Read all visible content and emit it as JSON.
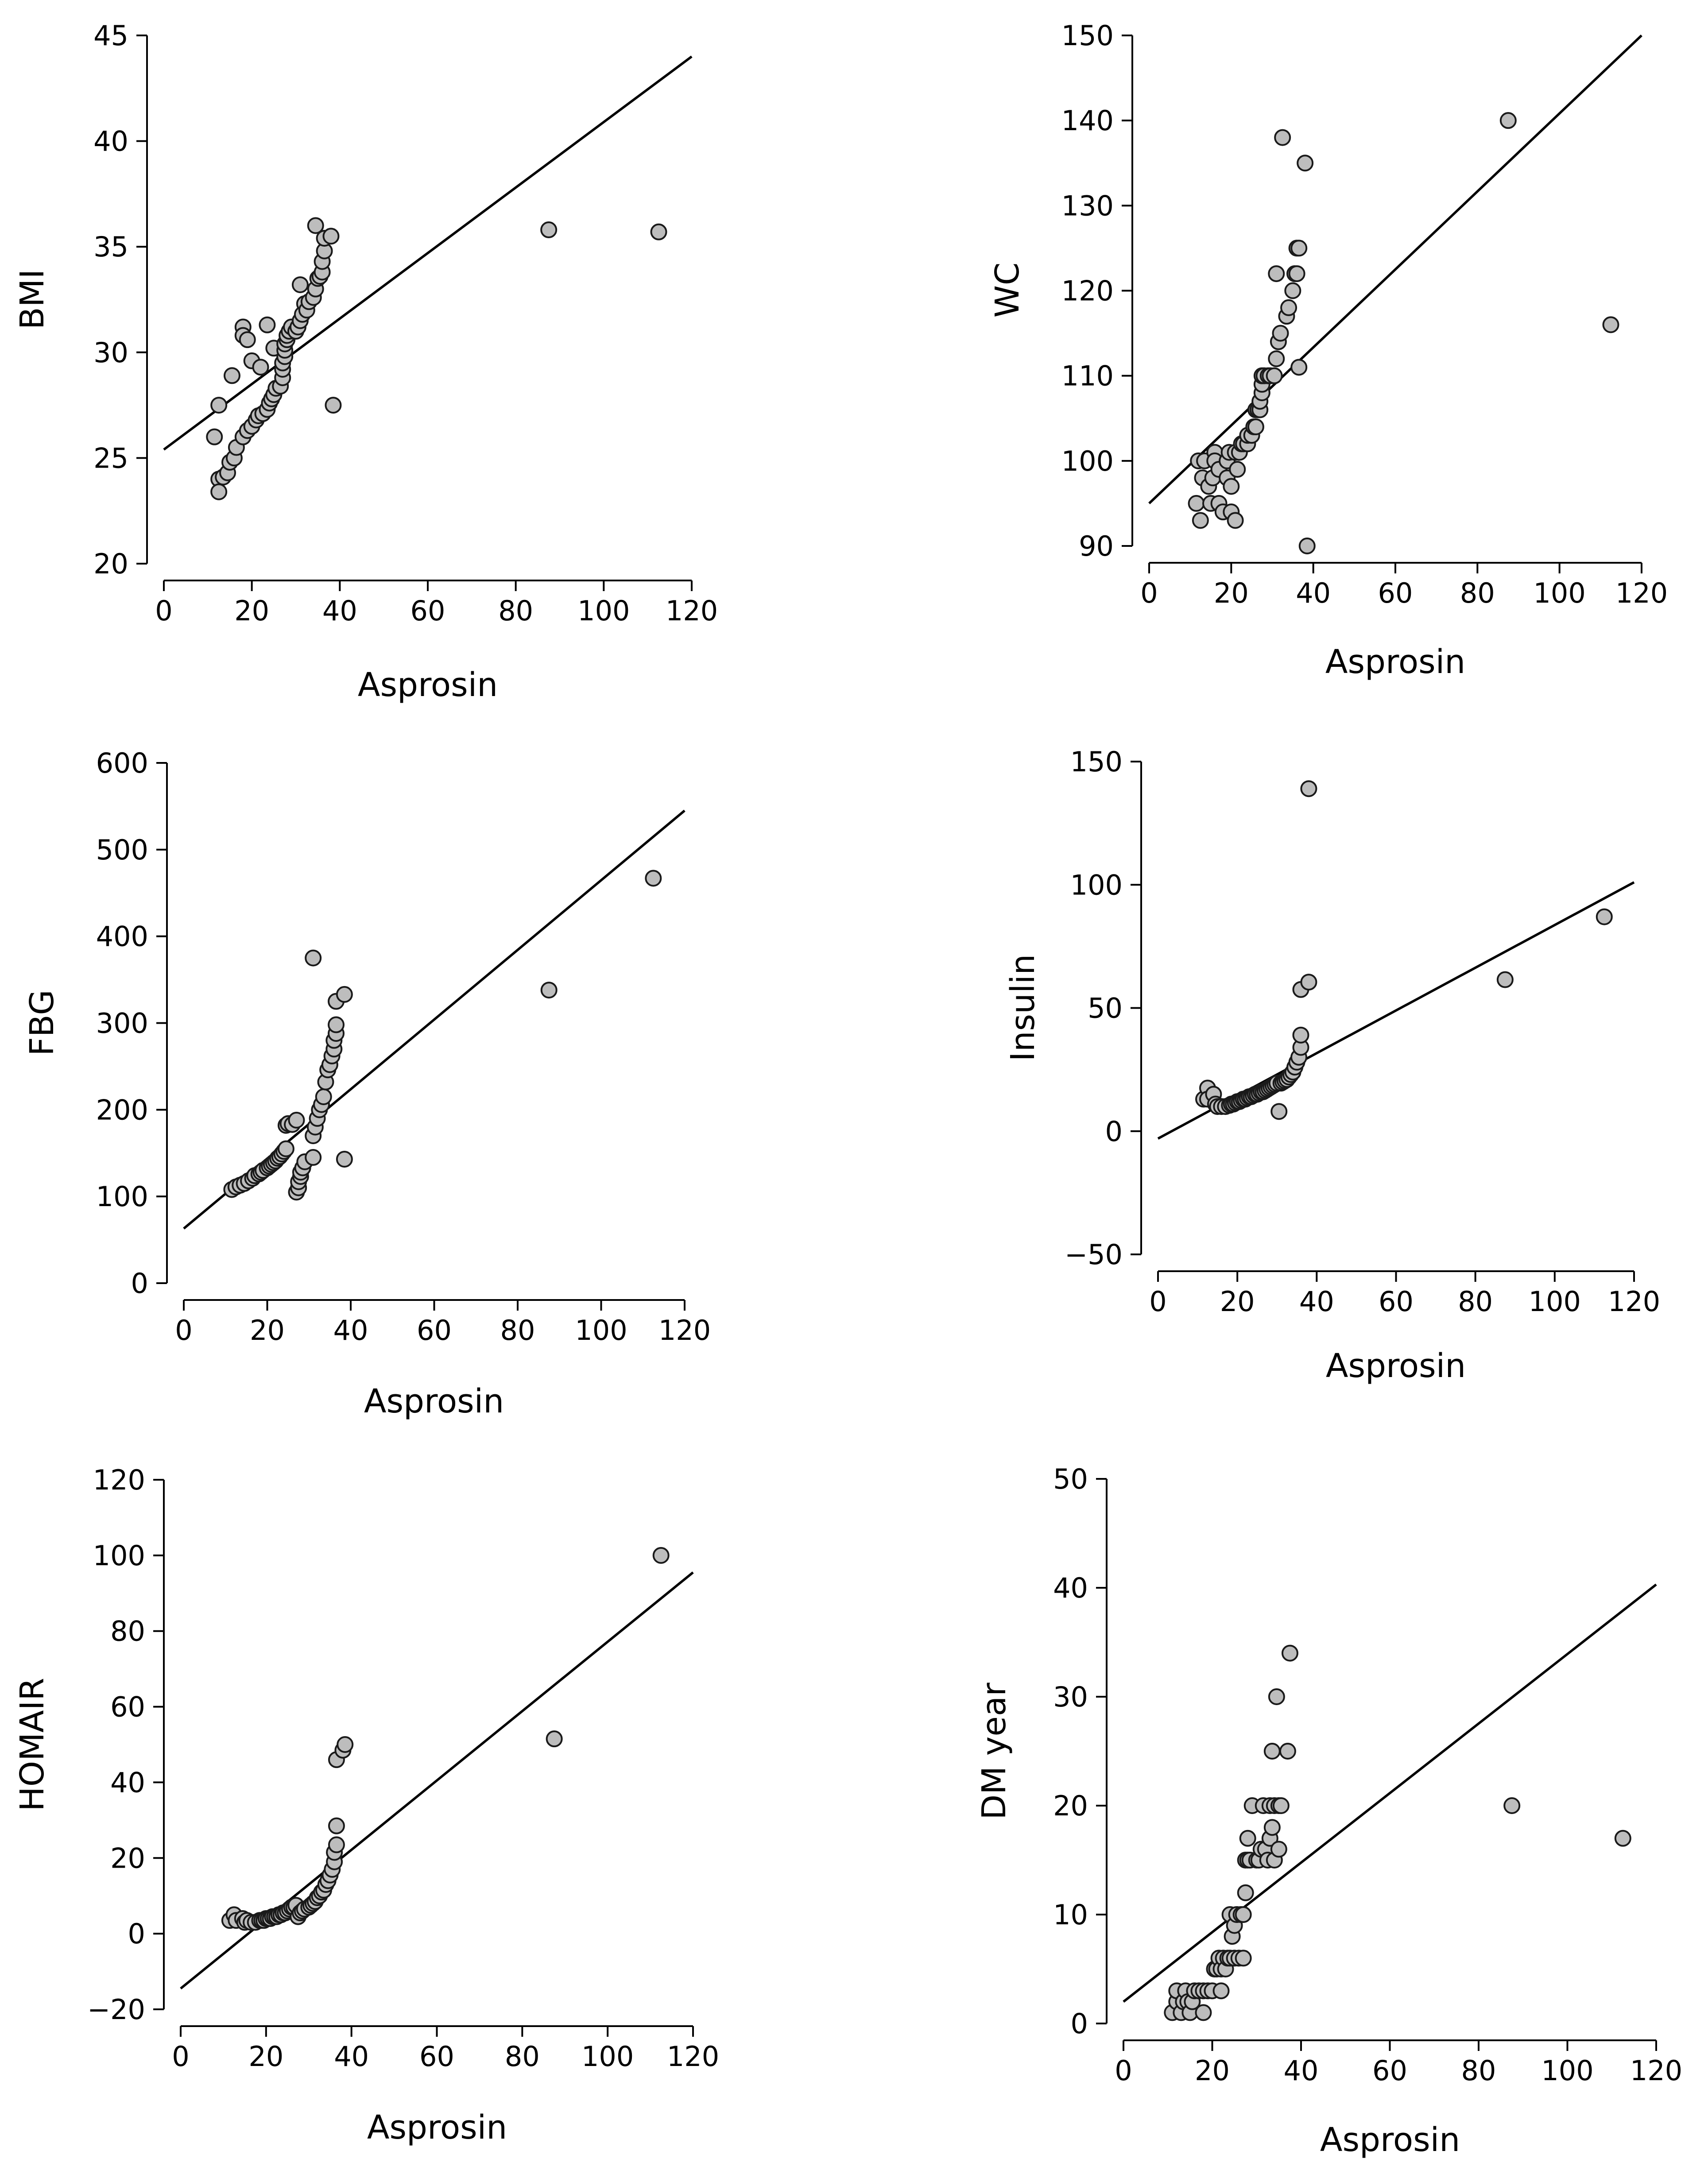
{
  "chart_data": [
    {
      "id": "bmi",
      "type": "scatter",
      "title": "",
      "xlabel": "Asprosin",
      "ylabel": "BMI",
      "xlim": [
        0,
        120
      ],
      "ylim": [
        20,
        45
      ],
      "xticks": [
        0,
        20,
        40,
        60,
        80,
        100,
        120
      ],
      "yticks": [
        20,
        25,
        30,
        35,
        40,
        45
      ],
      "fit_line": [
        [
          0,
          25.4
        ],
        [
          120,
          44
        ]
      ],
      "points": [
        [
          11.5,
          26
        ],
        [
          12.5,
          27.5
        ],
        [
          12.5,
          24
        ],
        [
          12.5,
          23.4
        ],
        [
          13.5,
          24.1
        ],
        [
          14.5,
          24.3
        ],
        [
          15,
          24.8
        ],
        [
          15.5,
          28.9
        ],
        [
          16,
          25
        ],
        [
          16.5,
          25.5
        ],
        [
          18,
          31.2
        ],
        [
          18,
          26
        ],
        [
          18,
          30.8
        ],
        [
          19,
          30.6
        ],
        [
          19,
          26.3
        ],
        [
          20,
          26.5
        ],
        [
          20,
          29.6
        ],
        [
          21,
          26.8
        ],
        [
          21.5,
          27
        ],
        [
          22,
          29.3
        ],
        [
          22.5,
          27.1
        ],
        [
          23.5,
          31.3
        ],
        [
          23.5,
          27.3
        ],
        [
          24,
          27.6
        ],
        [
          24.5,
          27.8
        ],
        [
          25,
          28
        ],
        [
          25,
          30.2
        ],
        [
          25.5,
          28.3
        ],
        [
          26.5,
          28.4
        ],
        [
          27,
          28.8
        ],
        [
          27,
          29.2
        ],
        [
          27,
          29.5
        ],
        [
          27.5,
          29.8
        ],
        [
          27.5,
          30.1
        ],
        [
          27.5,
          30.4
        ],
        [
          28,
          30.6
        ],
        [
          28,
          30.8
        ],
        [
          28.5,
          31
        ],
        [
          29,
          31.2
        ],
        [
          30,
          31
        ],
        [
          30.5,
          31.2
        ],
        [
          31,
          31.5
        ],
        [
          31,
          33.2
        ],
        [
          31.5,
          31.8
        ],
        [
          32,
          32.3
        ],
        [
          32.5,
          32
        ],
        [
          33,
          32.4
        ],
        [
          34,
          32.6
        ],
        [
          34.5,
          33
        ],
        [
          34.5,
          36
        ],
        [
          35,
          33.5
        ],
        [
          35.5,
          33.6
        ],
        [
          36,
          33.8
        ],
        [
          36,
          34.3
        ],
        [
          36.5,
          34.8
        ],
        [
          36.5,
          35.4
        ],
        [
          38,
          35.5
        ],
        [
          38.5,
          27.5
        ],
        [
          87.5,
          35.8
        ],
        [
          112.5,
          35.7
        ]
      ]
    },
    {
      "id": "wc",
      "type": "scatter",
      "title": "",
      "xlabel": "Asprosin",
      "ylabel": "WC",
      "xlim": [
        0,
        120
      ],
      "ylim": [
        90,
        150
      ],
      "xticks": [
        0,
        20,
        40,
        60,
        80,
        100,
        120
      ],
      "yticks": [
        90,
        100,
        110,
        120,
        130,
        140,
        150
      ],
      "fit_line": [
        [
          0,
          95
        ],
        [
          120,
          150
        ]
      ],
      "points": [
        [
          11.5,
          95
        ],
        [
          12,
          100
        ],
        [
          12.5,
          93
        ],
        [
          13,
          98
        ],
        [
          13.5,
          100
        ],
        [
          14.5,
          97
        ],
        [
          15,
          95
        ],
        [
          15.5,
          98
        ],
        [
          16,
          101
        ],
        [
          16,
          100
        ],
        [
          17,
          95
        ],
        [
          17,
          99
        ],
        [
          18,
          94
        ],
        [
          19,
          98
        ],
        [
          19,
          100
        ],
        [
          19.5,
          101
        ],
        [
          20,
          94
        ],
        [
          20,
          97
        ],
        [
          21,
          93
        ],
        [
          21,
          101
        ],
        [
          21.5,
          99
        ],
        [
          22,
          101
        ],
        [
          22.5,
          102
        ],
        [
          23,
          102
        ],
        [
          24,
          102
        ],
        [
          24,
          103
        ],
        [
          25,
          103
        ],
        [
          25.5,
          104
        ],
        [
          26,
          104
        ],
        [
          26,
          106
        ],
        [
          26.5,
          106
        ],
        [
          27,
          106
        ],
        [
          27,
          107
        ],
        [
          27.5,
          108
        ],
        [
          27.5,
          109
        ],
        [
          27.5,
          110
        ],
        [
          28,
          110
        ],
        [
          29,
          110
        ],
        [
          29.5,
          110
        ],
        [
          30.5,
          110
        ],
        [
          31,
          112
        ],
        [
          31.5,
          114
        ],
        [
          32,
          115
        ],
        [
          31,
          122
        ],
        [
          32.5,
          138
        ],
        [
          33.5,
          117
        ],
        [
          34,
          118
        ],
        [
          35,
          120
        ],
        [
          35.5,
          122
        ],
        [
          36,
          122
        ],
        [
          36,
          125
        ],
        [
          36.5,
          125
        ],
        [
          36.5,
          111
        ],
        [
          38,
          135
        ],
        [
          38.5,
          90
        ],
        [
          87.5,
          140
        ],
        [
          112.5,
          116
        ]
      ]
    },
    {
      "id": "fbg",
      "type": "scatter",
      "title": "",
      "xlabel": "Asprosin",
      "ylabel": "FBG",
      "xlim": [
        0,
        120
      ],
      "ylim": [
        0,
        600
      ],
      "xticks": [
        0,
        20,
        40,
        60,
        80,
        100,
        120
      ],
      "yticks": [
        0,
        100,
        200,
        300,
        400,
        500,
        600
      ],
      "fit_line": [
        [
          0,
          63
        ],
        [
          120,
          545
        ]
      ],
      "points": [
        [
          11.5,
          108
        ],
        [
          12.5,
          111
        ],
        [
          13.5,
          113
        ],
        [
          14.5,
          115
        ],
        [
          15.5,
          118
        ],
        [
          16.5,
          121
        ],
        [
          17,
          124
        ],
        [
          18,
          126
        ],
        [
          18.5,
          128
        ],
        [
          19,
          130
        ],
        [
          20,
          133
        ],
        [
          20.5,
          135
        ],
        [
          21,
          137
        ],
        [
          21.5,
          139
        ],
        [
          22,
          141
        ],
        [
          22.5,
          144
        ],
        [
          23,
          146
        ],
        [
          23.5,
          149
        ],
        [
          24,
          152
        ],
        [
          24.5,
          155
        ],
        [
          24.5,
          182
        ],
        [
          25,
          184
        ],
        [
          26,
          183
        ],
        [
          27,
          188
        ],
        [
          27,
          105
        ],
        [
          27.5,
          110
        ],
        [
          27.5,
          117
        ],
        [
          28,
          123
        ],
        [
          28,
          128
        ],
        [
          28.5,
          133
        ],
        [
          29,
          140
        ],
        [
          31,
          145
        ],
        [
          31,
          170
        ],
        [
          31.5,
          180
        ],
        [
          32,
          190
        ],
        [
          32.5,
          200
        ],
        [
          33,
          206
        ],
        [
          33.5,
          215
        ],
        [
          34,
          232
        ],
        [
          34.5,
          246
        ],
        [
          35,
          252
        ],
        [
          35.5,
          262
        ],
        [
          36,
          270
        ],
        [
          36,
          280
        ],
        [
          36.5,
          288
        ],
        [
          36.5,
          298
        ],
        [
          36.5,
          325
        ],
        [
          31,
          375
        ],
        [
          38.5,
          333
        ],
        [
          38.5,
          143
        ],
        [
          87.5,
          338
        ],
        [
          112.5,
          467
        ]
      ]
    },
    {
      "id": "insulin",
      "type": "scatter",
      "title": "",
      "xlabel": "Asprosin",
      "ylabel": "Insulin",
      "xlim": [
        0,
        120
      ],
      "ylim": [
        -50,
        150
      ],
      "xticks": [
        0,
        20,
        40,
        60,
        80,
        100,
        120
      ],
      "yticks": [
        -50,
        0,
        50,
        100,
        150
      ],
      "fit_line": [
        [
          0,
          -3
        ],
        [
          120,
          101
        ]
      ],
      "points": [
        [
          11.5,
          13
        ],
        [
          12.5,
          17.5
        ],
        [
          12.5,
          13
        ],
        [
          14,
          15
        ],
        [
          14.5,
          11
        ],
        [
          15,
          10
        ],
        [
          16,
          10
        ],
        [
          17,
          10
        ],
        [
          18,
          10.5
        ],
        [
          18.5,
          11
        ],
        [
          19,
          11
        ],
        [
          19.5,
          11.5
        ],
        [
          20,
          12
        ],
        [
          20.5,
          12
        ],
        [
          21,
          12.5
        ],
        [
          21.5,
          13
        ],
        [
          22,
          13
        ],
        [
          22.5,
          13.5
        ],
        [
          23,
          14
        ],
        [
          23.5,
          14
        ],
        [
          24,
          14.5
        ],
        [
          24.5,
          15
        ],
        [
          25,
          15
        ],
        [
          25.5,
          15.5
        ],
        [
          26,
          16
        ],
        [
          26.5,
          16
        ],
        [
          27,
          16.5
        ],
        [
          27.5,
          17
        ],
        [
          28,
          17.5
        ],
        [
          28.5,
          18
        ],
        [
          29,
          18.5
        ],
        [
          29.5,
          19
        ],
        [
          30,
          19.5
        ],
        [
          30.5,
          8
        ],
        [
          31,
          19.5
        ],
        [
          31.5,
          20
        ],
        [
          32,
          20.5
        ],
        [
          32.5,
          21
        ],
        [
          33,
          22
        ],
        [
          33.5,
          23
        ],
        [
          34,
          24
        ],
        [
          34.5,
          26
        ],
        [
          35,
          28
        ],
        [
          35.5,
          30
        ],
        [
          36,
          34
        ],
        [
          36,
          39
        ],
        [
          36,
          57.5
        ],
        [
          38,
          60.5
        ],
        [
          38,
          139
        ],
        [
          87.5,
          61.5
        ],
        [
          112.5,
          87
        ]
      ]
    },
    {
      "id": "homair",
      "type": "scatter",
      "title": "",
      "xlabel": "Asprosin",
      "ylabel": "HOMAIR",
      "xlim": [
        0,
        120
      ],
      "ylim": [
        -20,
        120
      ],
      "xticks": [
        0,
        20,
        40,
        60,
        80,
        100,
        120
      ],
      "yticks": [
        -20,
        0,
        20,
        40,
        60,
        80,
        100,
        120
      ],
      "fit_line": [
        [
          0,
          -14.5
        ],
        [
          120,
          95.5
        ]
      ],
      "points": [
        [
          11.5,
          3.5
        ],
        [
          12.5,
          5
        ],
        [
          13,
          3.5
        ],
        [
          14.5,
          4
        ],
        [
          15,
          3
        ],
        [
          15.5,
          3.5
        ],
        [
          16.5,
          3
        ],
        [
          17.5,
          3
        ],
        [
          18.5,
          3.5
        ],
        [
          19,
          3.5
        ],
        [
          19.5,
          3.5
        ],
        [
          20,
          4
        ],
        [
          20.5,
          4
        ],
        [
          21,
          4
        ],
        [
          21.5,
          4.5
        ],
        [
          22,
          4.5
        ],
        [
          22.5,
          4.5
        ],
        [
          23,
          5
        ],
        [
          23.5,
          5
        ],
        [
          24,
          5.5
        ],
        [
          24.5,
          5.5
        ],
        [
          25,
          6
        ],
        [
          25.5,
          6.5
        ],
        [
          26,
          7
        ],
        [
          26.5,
          7
        ],
        [
          27,
          7.5
        ],
        [
          27.5,
          4.5
        ],
        [
          28,
          5.5
        ],
        [
          28.5,
          6
        ],
        [
          29,
          6.5
        ],
        [
          30,
          7
        ],
        [
          30.5,
          7.5
        ],
        [
          31,
          8
        ],
        [
          31.5,
          8.5
        ],
        [
          32,
          9.5
        ],
        [
          32.5,
          10
        ],
        [
          33,
          11
        ],
        [
          33.5,
          11.5
        ],
        [
          34,
          13
        ],
        [
          34.5,
          14
        ],
        [
          35,
          15.5
        ],
        [
          35.5,
          17
        ],
        [
          36,
          19
        ],
        [
          36,
          21.5
        ],
        [
          36.5,
          23.5
        ],
        [
          36.5,
          28.5
        ],
        [
          36.5,
          46
        ],
        [
          38,
          48.5
        ],
        [
          38.5,
          50
        ],
        [
          87.5,
          51.5
        ],
        [
          112.5,
          100
        ]
      ]
    },
    {
      "id": "dmyear",
      "type": "scatter",
      "title": "",
      "xlabel": "Asprosin",
      "ylabel": "DM year",
      "xlim": [
        0,
        120
      ],
      "ylim": [
        0,
        50
      ],
      "xticks": [
        0,
        20,
        40,
        60,
        80,
        100,
        120
      ],
      "yticks": [
        0,
        10,
        20,
        30,
        40,
        50
      ],
      "fit_line": [
        [
          0,
          2
        ],
        [
          120,
          40.3
        ]
      ],
      "points": [
        [
          11,
          1
        ],
        [
          12,
          2
        ],
        [
          12,
          3
        ],
        [
          13,
          1
        ],
        [
          13.5,
          2
        ],
        [
          14,
          3
        ],
        [
          14.5,
          2
        ],
        [
          15,
          1
        ],
        [
          15.5,
          2
        ],
        [
          16,
          3
        ],
        [
          17,
          3
        ],
        [
          18,
          1
        ],
        [
          18,
          3
        ],
        [
          19,
          3
        ],
        [
          20,
          3
        ],
        [
          20.5,
          5
        ],
        [
          21,
          5
        ],
        [
          21.5,
          6
        ],
        [
          22,
          3
        ],
        [
          22,
          5
        ],
        [
          22.5,
          6
        ],
        [
          23,
          5
        ],
        [
          23.5,
          6
        ],
        [
          24,
          6
        ],
        [
          24,
          10
        ],
        [
          24.5,
          8
        ],
        [
          25,
          6
        ],
        [
          25,
          9
        ],
        [
          25.5,
          10
        ],
        [
          26,
          6
        ],
        [
          26.5,
          10
        ],
        [
          27,
          6
        ],
        [
          27,
          10
        ],
        [
          27.5,
          12
        ],
        [
          27.5,
          15
        ],
        [
          28,
          15
        ],
        [
          28,
          17
        ],
        [
          28.5,
          15
        ],
        [
          29,
          20
        ],
        [
          30,
          15
        ],
        [
          30.5,
          15
        ],
        [
          31,
          16
        ],
        [
          31.5,
          20
        ],
        [
          32,
          16
        ],
        [
          32.5,
          15
        ],
        [
          33,
          20
        ],
        [
          33,
          17
        ],
        [
          33.5,
          18
        ],
        [
          33.5,
          25
        ],
        [
          34,
          15
        ],
        [
          34,
          20
        ],
        [
          34.5,
          30
        ],
        [
          35,
          16
        ],
        [
          35,
          20
        ],
        [
          35.5,
          20
        ],
        [
          37,
          25
        ],
        [
          37.5,
          34
        ],
        [
          87.5,
          20
        ],
        [
          112.5,
          17
        ]
      ]
    }
  ]
}
